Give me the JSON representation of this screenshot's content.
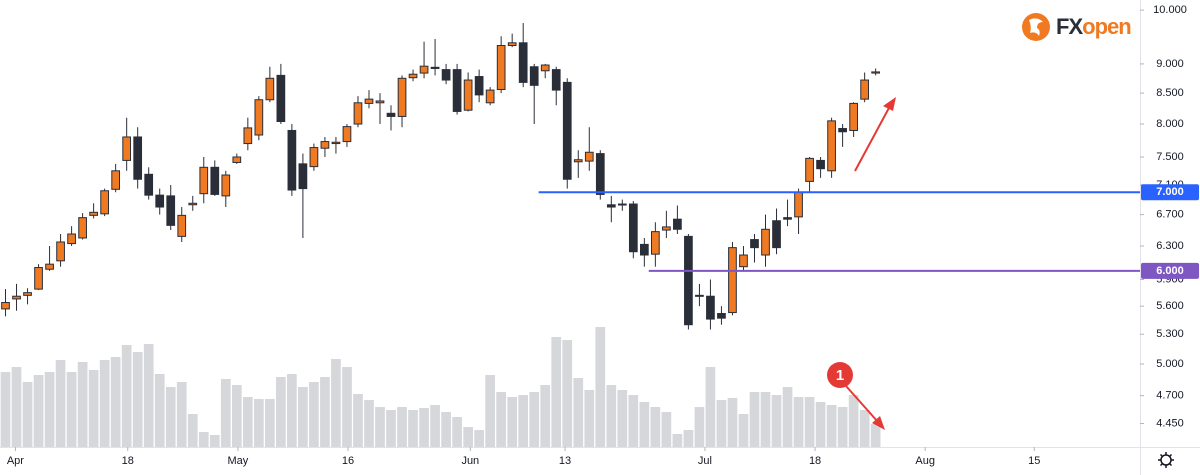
{
  "chart_data": {
    "type": "candlestick",
    "log_scale": true,
    "logo": {
      "first": "FX",
      "second": "open"
    },
    "up_color": "#f07a22",
    "down_color": "#2a2e39",
    "volume_color": "#d6d7db",
    "xlim": [
      -0.5,
      103
    ],
    "ylim": [
      4.25,
      10.2
    ],
    "xticks": [
      {
        "value": 0.9,
        "label": "Apr"
      },
      {
        "value": 11.1,
        "label": "18"
      },
      {
        "value": 21.1,
        "label": "May"
      },
      {
        "value": 31.1,
        "label": "16"
      },
      {
        "value": 42.2,
        "label": "Jun"
      },
      {
        "value": 50.8,
        "label": "13"
      },
      {
        "value": 63.5,
        "label": "Jul"
      },
      {
        "value": 73.5,
        "label": "18"
      },
      {
        "value": 83.5,
        "label": "Aug"
      },
      {
        "value": 93.4,
        "label": "15"
      }
    ],
    "yticks": [
      {
        "value": 10,
        "label": "10.000"
      },
      {
        "value": 9,
        "label": "9.000"
      },
      {
        "value": 8.5,
        "label": "8.500"
      },
      {
        "value": 8,
        "label": "8.000"
      },
      {
        "value": 7.5,
        "label": "7.500"
      },
      {
        "value": 7.1,
        "label": "7.100"
      },
      {
        "value": 6.7,
        "label": "6.700"
      },
      {
        "value": 6.3,
        "label": "6.300"
      },
      {
        "value": 5.9,
        "label": "5.900"
      },
      {
        "value": 5.6,
        "label": "5.600"
      },
      {
        "value": 5.3,
        "label": "5.300"
      },
      {
        "value": 5,
        "label": "5.000"
      },
      {
        "value": 4.7,
        "label": "4.700"
      },
      {
        "value": 4.45,
        "label": "4.450"
      }
    ],
    "hlines": [
      {
        "value": 7,
        "label": "7.000",
        "start": 48.4,
        "color": "#2962ff"
      },
      {
        "value": 6,
        "label": "6.000",
        "start": 58.4,
        "color": "#7e57c2"
      }
    ],
    "annotation": "1",
    "open": [
      5.57,
      5.68,
      5.72,
      5.79,
      6.02,
      6.12,
      6.33,
      6.4,
      6.69,
      6.71,
      7.04,
      7.45,
      7.8,
      7.25,
      6.96,
      6.95,
      6.42,
      6.83,
      6.98,
      7.35,
      6.95,
      7.42,
      7.7,
      7.83,
      8.39,
      8.8,
      7.9,
      7.4,
      7.36,
      7.63,
      7.7,
      7.73,
      8.0,
      8.33,
      8.34,
      8.17,
      8.12,
      8.76,
      8.84,
      8.94,
      8.9,
      8.9,
      8.22,
      8.78,
      8.34,
      8.56,
      9.33,
      9.38,
      8.95,
      8.88,
      8.9,
      8.68,
      7.43,
      7.44,
      7.55,
      6.83,
      6.84,
      6.84,
      6.32,
      6.2,
      6.5,
      6.64,
      6.42,
      5.72,
      5.71,
      5.52,
      5.53,
      6.05,
      6.38,
      6.19,
      6.62,
      6.66,
      6.67,
      7.15,
      7.45,
      7.3,
      7.93,
      7.9,
      8.4,
      8.84
    ],
    "high": [
      5.79,
      5.85,
      5.8,
      6.08,
      6.3,
      6.45,
      6.55,
      6.72,
      6.85,
      7.05,
      7.4,
      8.1,
      7.95,
      7.35,
      7.05,
      7.1,
      6.8,
      6.95,
      7.5,
      7.45,
      7.3,
      7.55,
      8.1,
      8.45,
      8.95,
      9.0,
      8.0,
      7.55,
      7.7,
      7.8,
      7.8,
      8.0,
      8.45,
      8.55,
      8.5,
      8.3,
      8.8,
      8.9,
      9.4,
      9.45,
      9.0,
      9.0,
      8.85,
      8.9,
      8.6,
      9.5,
      9.55,
      9.75,
      9.0,
      9.0,
      8.95,
      8.75,
      7.6,
      7.95,
      7.6,
      6.95,
      6.9,
      6.88,
      6.4,
      6.6,
      6.75,
      6.82,
      6.45,
      5.85,
      5.9,
      5.6,
      6.35,
      6.3,
      6.45,
      6.7,
      6.78,
      6.9,
      7.05,
      7.5,
      7.5,
      8.1,
      8.0,
      8.35,
      8.85,
      8.92
    ],
    "low": [
      5.49,
      5.55,
      5.62,
      5.78,
      6.0,
      6.05,
      6.3,
      6.38,
      6.65,
      6.68,
      7.0,
      7.3,
      7.05,
      6.9,
      6.7,
      6.5,
      6.35,
      6.75,
      6.85,
      6.95,
      6.8,
      7.4,
      7.6,
      7.75,
      8.35,
      8.0,
      6.95,
      6.4,
      7.3,
      7.5,
      7.55,
      7.65,
      7.95,
      8.25,
      8.0,
      7.9,
      7.95,
      8.7,
      8.75,
      8.8,
      8.65,
      8.15,
      8.2,
      8.35,
      8.3,
      8.5,
      9.3,
      8.6,
      8.0,
      8.75,
      8.3,
      7.05,
      7.2,
      7.3,
      6.9,
      6.6,
      6.75,
      6.15,
      6.05,
      6.05,
      6.4,
      6.45,
      5.35,
      5.6,
      5.35,
      5.4,
      5.5,
      6.0,
      6.1,
      6.05,
      6.2,
      6.55,
      6.45,
      7.0,
      7.2,
      7.2,
      7.65,
      7.8,
      8.35,
      8.8
    ],
    "close": [
      5.64,
      5.71,
      5.75,
      6.04,
      6.08,
      6.35,
      6.45,
      6.66,
      6.73,
      7.02,
      7.3,
      7.8,
      7.18,
      6.96,
      6.8,
      6.56,
      6.69,
      6.85,
      7.35,
      6.97,
      7.24,
      7.5,
      7.94,
      8.39,
      8.75,
      8.04,
      7.03,
      7.05,
      7.64,
      7.73,
      7.72,
      7.96,
      8.34,
      8.4,
      8.37,
      8.12,
      8.75,
      8.82,
      8.96,
      8.92,
      8.72,
      8.2,
      8.72,
      8.47,
      8.55,
      9.33,
      9.38,
      8.68,
      8.63,
      8.98,
      8.55,
      7.18,
      7.46,
      7.57,
      6.97,
      6.8,
      6.83,
      6.23,
      6.19,
      6.48,
      6.54,
      6.51,
      5.4,
      5.71,
      5.46,
      5.47,
      6.28,
      6.19,
      6.28,
      6.51,
      6.28,
      6.64,
      7.0,
      7.48,
      7.33,
      8.05,
      7.88,
      8.33,
      8.72,
      8.86
    ],
    "volume": [
      75,
      80,
      65,
      72,
      75,
      87,
      75,
      85,
      77,
      87,
      90,
      102,
      95,
      103,
      73,
      60,
      65,
      33,
      15,
      12,
      68,
      62,
      50,
      48,
      48,
      70,
      73,
      60,
      65,
      70,
      88,
      80,
      53,
      47,
      40,
      37,
      40,
      37,
      39,
      42,
      35,
      30,
      20,
      17,
      72,
      55,
      50,
      52,
      55,
      62,
      110,
      107,
      69,
      57,
      120,
      62,
      57,
      52,
      45,
      40,
      35,
      13,
      17,
      40,
      80,
      47,
      49,
      33,
      55,
      55,
      52,
      60,
      50,
      50,
      45,
      42,
      40,
      52,
      37,
      23
    ]
  }
}
